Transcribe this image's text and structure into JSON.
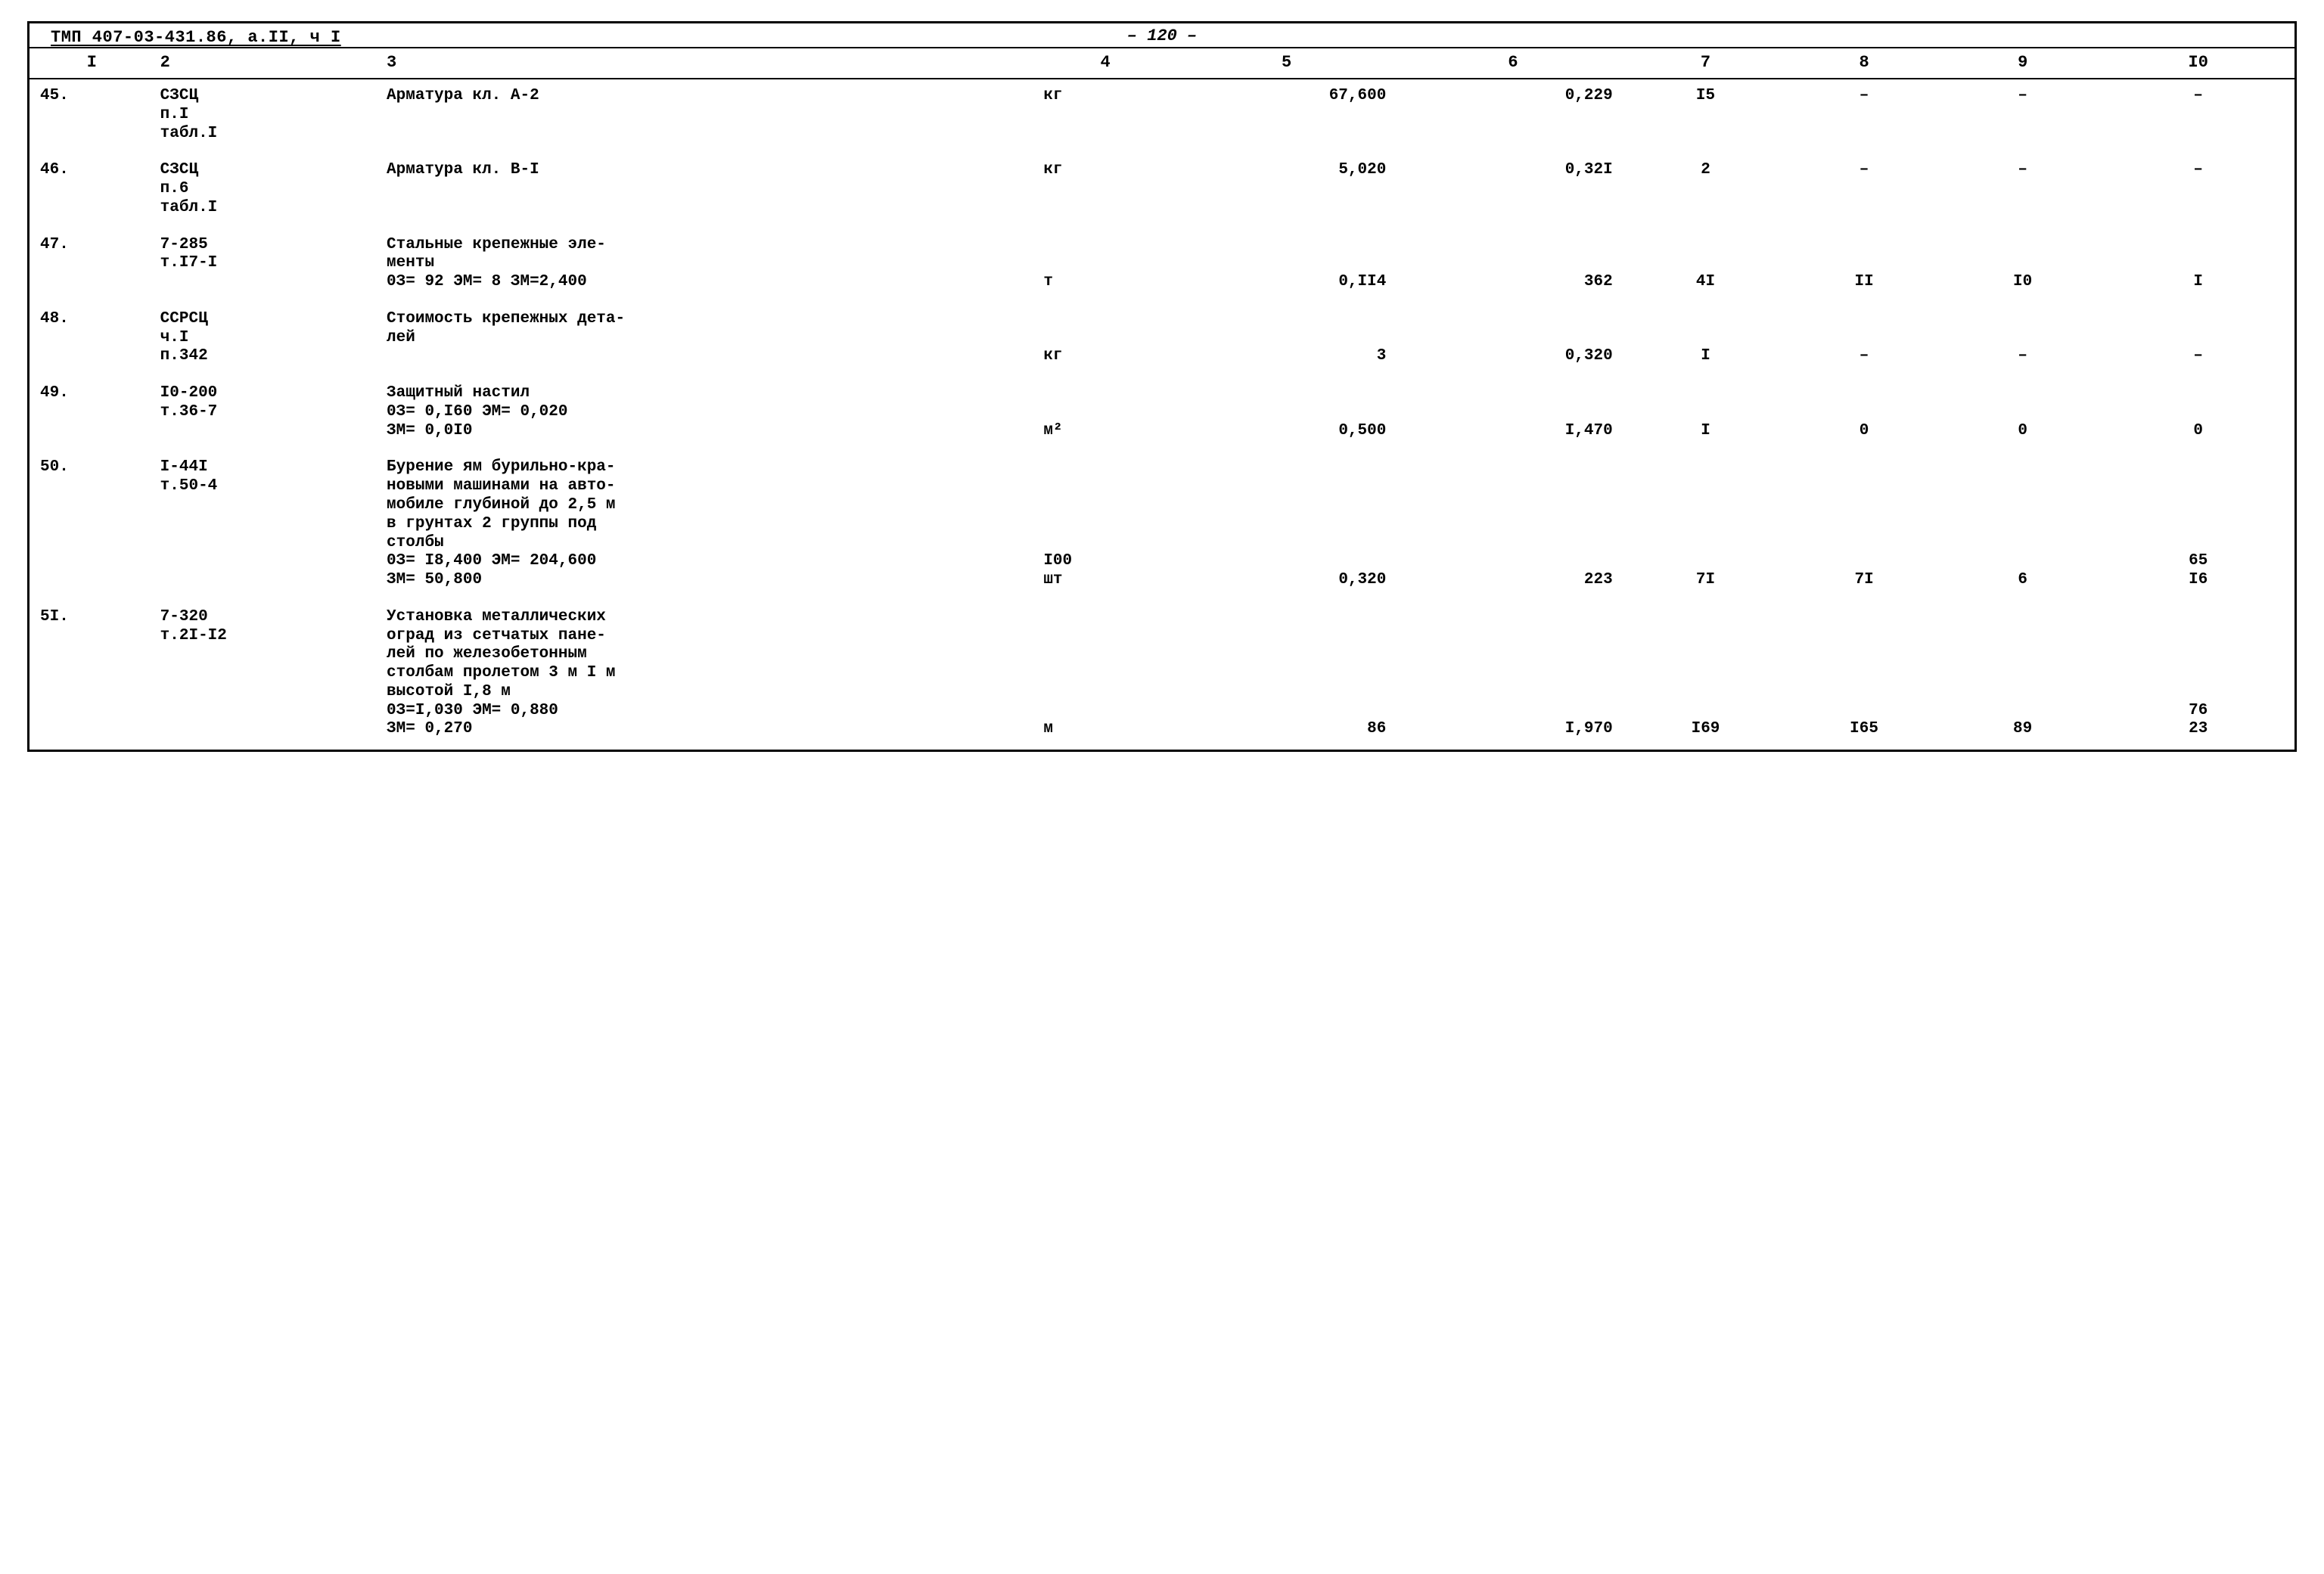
{
  "header": {
    "doc_code": "ТМП 407-03-431.86, а.II, ч I",
    "page_no": "– 120 –"
  },
  "columns": [
    "I",
    "2",
    "3",
    "4",
    "5",
    "6",
    "7",
    "8",
    "9",
    "I0"
  ],
  "rows": [
    {
      "idx": "45.",
      "ref": "СЗСЦ\nп.I\nтабл.I",
      "desc": "Арматура кл. А-2",
      "unit": "кг",
      "c5": "67,600",
      "c6": "0,229",
      "c7": "I5",
      "c8": "–",
      "c9": "–",
      "c10": "–"
    },
    {
      "idx": "46.",
      "ref": "СЗСЦ\nп.6\nтабл.I",
      "desc": "Арматура кл. В-I",
      "unit": "кг",
      "c5": "5,020",
      "c6": "0,32I",
      "c7": "2",
      "c8": "–",
      "c9": "–",
      "c10": "–"
    },
    {
      "idx": "47.",
      "ref": "7-285\nт.I7-I",
      "desc": "Стальные крепежные эле-\nменты\n0З= 92    ЭМ= 8    ЗМ=2,400",
      "unit": "т",
      "c5": "0,II4",
      "c6": "362",
      "c7": "4I",
      "c8": "II",
      "c9": "I0",
      "c10": "I"
    },
    {
      "idx": "48.",
      "ref": "ССРСЦ\nч.I\nп.342",
      "desc": "Стоимость крепежных дета-\nлей",
      "unit": "кг",
      "c5": "3",
      "c6": "0,320",
      "c7": "I",
      "c8": "–",
      "c9": "–",
      "c10": "–"
    },
    {
      "idx": "49.",
      "ref": "I0-200\nт.36-7",
      "desc": "Защитный настил\n0З= 0,I60    ЭМ= 0,020\nЗМ= 0,0I0",
      "unit": "м²",
      "c5": "0,500",
      "c6": "I,470",
      "c7": "I",
      "c8": "0",
      "c9": "0",
      "c10": "0"
    },
    {
      "idx": "50.",
      "ref": "I-44I\nт.50-4",
      "desc": "Бурение ям бурильно-кра-\nновыми машинами на авто-\nмобиле глубиной до 2,5 м\nв грунтах 2 группы под\nстолбы\n0З= I8,400    ЭМ= 204,600\nЗМ= 50,800",
      "unit": "I00\nшт",
      "c5": "0,320",
      "c6": "223",
      "c7": "7I",
      "c8": "7I",
      "c9": "6",
      "c10": "65\nI6"
    },
    {
      "idx": "5I.",
      "ref": "7-320\nт.2I-I2",
      "desc": "Установка металлических\nоград из сетчатых пане-\nлей по железобетонным\nстолбам пролетом 3 м I м\nвысотой I,8 м\n0З=I,030    ЭМ= 0,880\nЗМ= 0,270",
      "unit": "м",
      "c5": "86",
      "c6": "I,970",
      "c7": "I69",
      "c8": "I65",
      "c9": "89",
      "c10": "76\n23"
    }
  ]
}
